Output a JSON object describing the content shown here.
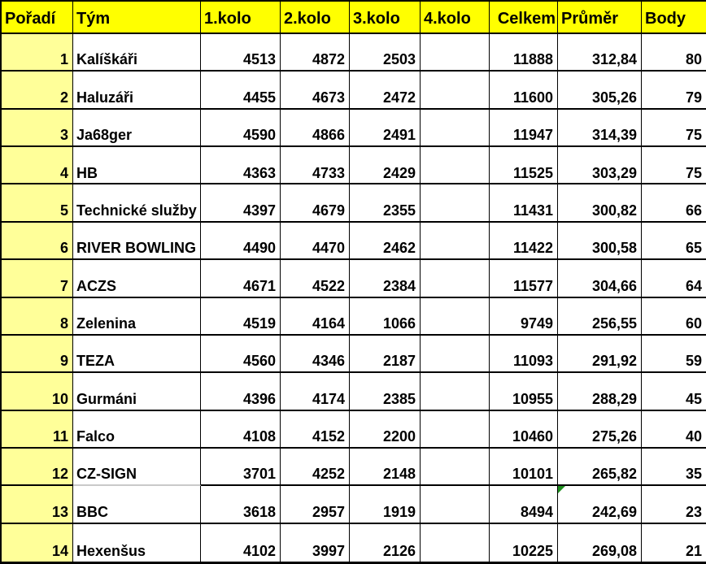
{
  "table": {
    "columns": [
      {
        "key": "rank",
        "label": "Pořadí"
      },
      {
        "key": "team",
        "label": "Tým"
      },
      {
        "key": "k1",
        "label": "1.kolo"
      },
      {
        "key": "k2",
        "label": "2.kolo"
      },
      {
        "key": "k3",
        "label": "3.kolo"
      },
      {
        "key": "k4",
        "label": "4.kolo"
      },
      {
        "key": "total",
        "label": "Celkem"
      },
      {
        "key": "avg",
        "label": "Průměr"
      },
      {
        "key": "points",
        "label": "Body"
      }
    ],
    "rows": [
      {
        "rank": "1",
        "team": "Kalíškáři",
        "k1": "4513",
        "k2": "4872",
        "k3": "2503",
        "k4": "",
        "total": "11888",
        "avg": "312,84",
        "points": "80"
      },
      {
        "rank": "2",
        "team": "Haluzáři",
        "k1": "4455",
        "k2": "4673",
        "k3": "2472",
        "k4": "",
        "total": "11600",
        "avg": "305,26",
        "points": "79"
      },
      {
        "rank": "3",
        "team": "Ja68ger",
        "k1": "4590",
        "k2": "4866",
        "k3": "2491",
        "k4": "",
        "total": "11947",
        "avg": "314,39",
        "points": "75"
      },
      {
        "rank": "4",
        "team": "HB",
        "k1": "4363",
        "k2": "4733",
        "k3": "2429",
        "k4": "",
        "total": "11525",
        "avg": "303,29",
        "points": "75"
      },
      {
        "rank": "5",
        "team": "Technické služby",
        "k1": "4397",
        "k2": "4679",
        "k3": "2355",
        "k4": "",
        "total": "11431",
        "avg": "300,82",
        "points": "66"
      },
      {
        "rank": "6",
        "team": "RIVER BOWLING",
        "k1": "4490",
        "k2": "4470",
        "k3": "2462",
        "k4": "",
        "total": "11422",
        "avg": "300,58",
        "points": "65"
      },
      {
        "rank": "7",
        "team": "ACZS",
        "k1": "4671",
        "k2": "4522",
        "k3": "2384",
        "k4": "",
        "total": "11577",
        "avg": "304,66",
        "points": "64"
      },
      {
        "rank": "8",
        "team": "Zelenina",
        "k1": "4519",
        "k2": "4164",
        "k3": "1066",
        "k4": "",
        "total": "9749",
        "avg": "256,55",
        "points": "60"
      },
      {
        "rank": "9",
        "team": "TEZA",
        "k1": "4560",
        "k2": "4346",
        "k3": "2187",
        "k4": "",
        "total": "11093",
        "avg": "291,92",
        "points": "59"
      },
      {
        "rank": "10",
        "team": "Gurmáni",
        "k1": "4396",
        "k2": "4174",
        "k3": "2385",
        "k4": "",
        "total": "10955",
        "avg": "288,29",
        "points": "45"
      },
      {
        "rank": "11",
        "team": "Falco",
        "k1": "4108",
        "k2": "4152",
        "k3": "2200",
        "k4": "",
        "total": "10460",
        "avg": "275,26",
        "points": "40"
      },
      {
        "rank": "12",
        "team": "CZ-SIGN",
        "k1": "3701",
        "k2": "4252",
        "k3": "2148",
        "k4": "",
        "total": "10101",
        "avg": "265,82",
        "points": "35"
      },
      {
        "rank": "13",
        "team": "BBC",
        "k1": "3618",
        "k2": "2957",
        "k3": "1919",
        "k4": "",
        "total": "8494",
        "avg": "242,69",
        "points": "23"
      },
      {
        "rank": "14",
        "team": "Hexenšus",
        "k1": "4102",
        "k2": "3997",
        "k3": "2126",
        "k4": "",
        "total": "10225",
        "avg": "269,08",
        "points": "21"
      }
    ]
  },
  "colors": {
    "header_bg": "#FFFF00",
    "rank_column_bg": "#FFFF99",
    "grid_line": "#000000",
    "faint_grid_line": "#C9C9C9",
    "error_marker_green": "#1E8F1E"
  },
  "annotations": {
    "error_marker": {
      "row_rank": "13",
      "column": "avg"
    },
    "faint_border": {
      "below_row_rank": "12",
      "column": "team"
    }
  }
}
